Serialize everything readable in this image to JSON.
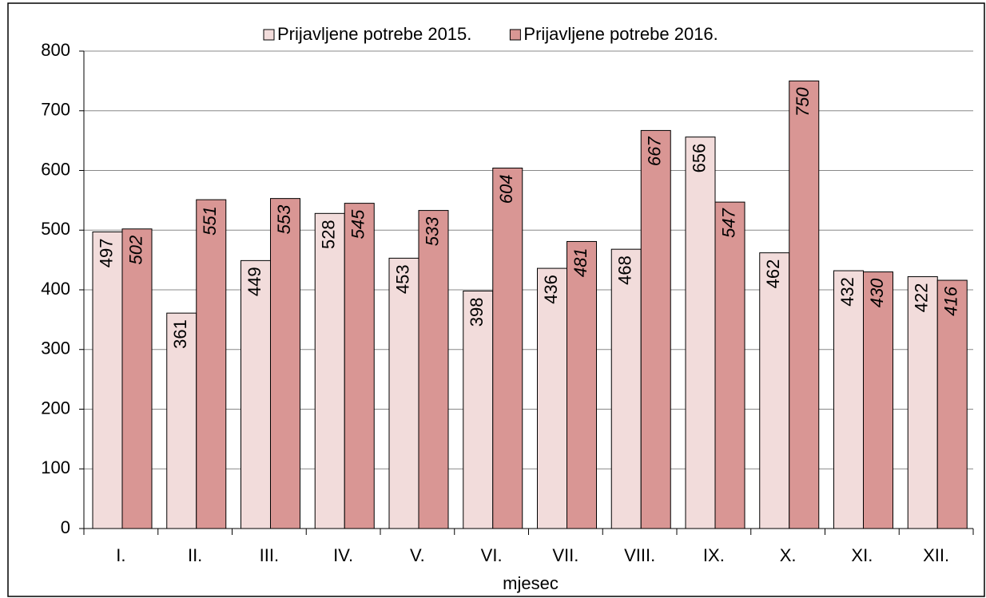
{
  "chart_data": {
    "type": "bar",
    "categories": [
      "I.",
      "II.",
      "III.",
      "IV.",
      "V.",
      "VI.",
      "VII.",
      "VIII.",
      "IX.",
      "X.",
      "XI.",
      "XII."
    ],
    "series": [
      {
        "name": "Prijavljene potrebe 2015.",
        "color": "#f2dcdb",
        "values": [
          497,
          361,
          449,
          528,
          453,
          398,
          436,
          468,
          656,
          462,
          432,
          422
        ]
      },
      {
        "name": "Prijavljene potrebe 2016.",
        "color": "#d99694",
        "values": [
          502,
          551,
          553,
          545,
          533,
          604,
          481,
          667,
          547,
          750,
          430,
          416
        ]
      }
    ],
    "x_label": "mjesec",
    "ylim": [
      0,
      800
    ],
    "yticks": [
      0,
      100,
      200,
      300,
      400,
      500,
      600,
      700,
      800
    ],
    "grid": true,
    "legend": "top"
  }
}
